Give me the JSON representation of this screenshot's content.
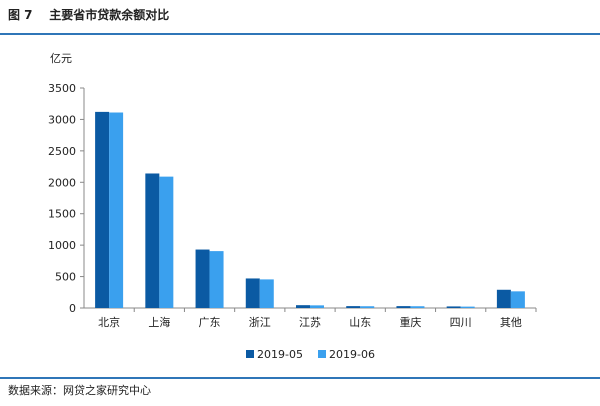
{
  "page": {
    "title": "图 7    主要省市贷款余额对比",
    "source": "数据来源：网贷之家研究中心"
  },
  "colors": {
    "rule": "#2f76b8",
    "series_1": "#0b5aa3",
    "series_2": "#3aa0ee",
    "axis": "#888888"
  },
  "chart_data": {
    "type": "bar",
    "title": "",
    "xlabel": "",
    "ylabel": "亿元",
    "ylim": [
      0,
      3500
    ],
    "yticks": [
      0,
      500,
      1000,
      1500,
      2000,
      2500,
      3000,
      3500
    ],
    "grid": false,
    "legend_position": "bottom",
    "categories": [
      "北京",
      "上海",
      "广东",
      "浙江",
      "江苏",
      "山东",
      "重庆",
      "四川",
      "其他"
    ],
    "series": [
      {
        "name": "2019-05",
        "values": [
          3120,
          2140,
          930,
          470,
          45,
          30,
          30,
          25,
          290
        ]
      },
      {
        "name": "2019-06",
        "values": [
          3110,
          2090,
          905,
          455,
          42,
          28,
          28,
          22,
          265
        ]
      }
    ]
  }
}
